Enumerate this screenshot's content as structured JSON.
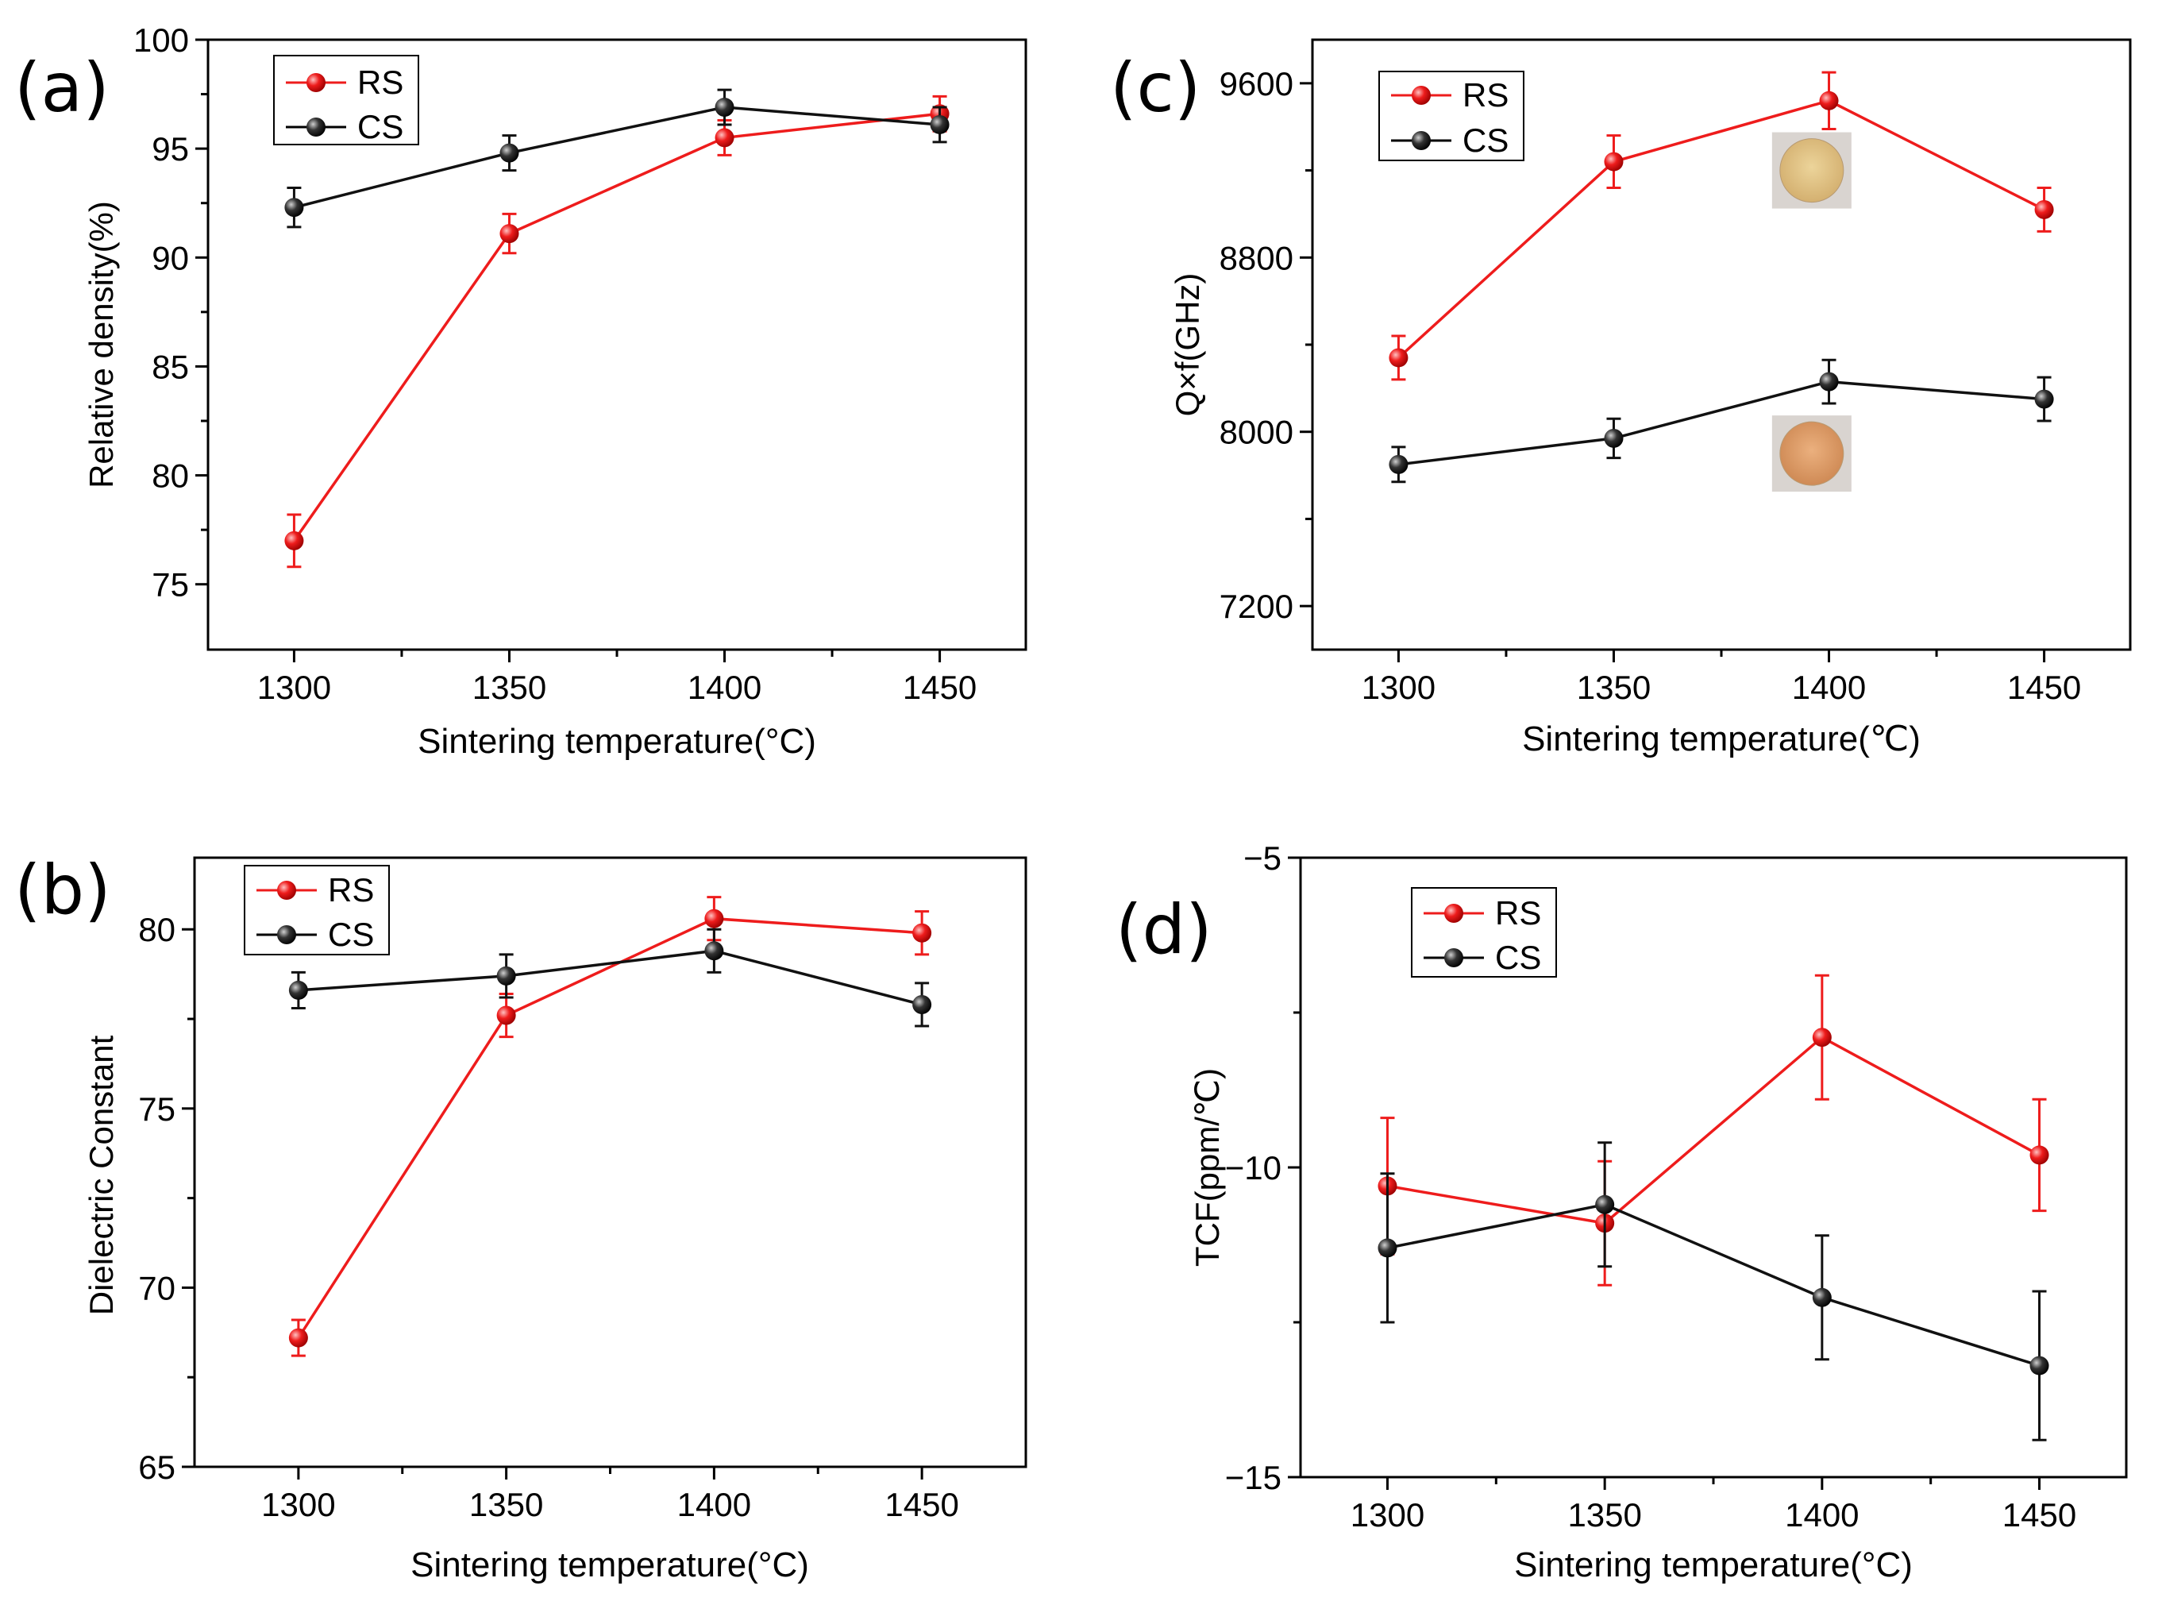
{
  "colors": {
    "RS": "#ee1c1c",
    "CS": "#111111",
    "pellet_top": "#e0c48a",
    "pellet_bottom": "#e0a070"
  },
  "chart_data": [
    {
      "id": "a",
      "panel_label": "(a)",
      "type": "line",
      "xlabel": "Sintering temperature(°C)",
      "ylabel": "Relative density(%)",
      "xlim": [
        1280,
        1470
      ],
      "ylim": [
        72,
        100
      ],
      "xticks": [
        1300,
        1350,
        1400,
        1450
      ],
      "xtick_labels": [
        "1300",
        "1350",
        "1400",
        "1450"
      ],
      "yticks": [
        75,
        80,
        85,
        90,
        95,
        100
      ],
      "ytick_labels": [
        "75",
        "80",
        "85",
        "90",
        "95",
        "100"
      ],
      "legend_position": "top-left",
      "x": [
        1300,
        1350,
        1400,
        1450
      ],
      "series": [
        {
          "name": "RS",
          "color_key": "RS",
          "values": [
            77.0,
            91.1,
            95.5,
            96.6
          ],
          "errors": [
            1.2,
            0.9,
            0.8,
            0.8
          ]
        },
        {
          "name": "CS",
          "color_key": "CS",
          "values": [
            92.3,
            94.8,
            96.9,
            96.1
          ],
          "errors": [
            0.9,
            0.8,
            0.8,
            0.8
          ]
        }
      ]
    },
    {
      "id": "b",
      "panel_label": "(b)",
      "type": "line",
      "xlabel": "Sintering temperature(°C)",
      "ylabel": "Dielectric Constant",
      "xlim": [
        1275,
        1475
      ],
      "ylim": [
        65,
        82
      ],
      "xticks": [
        1300,
        1350,
        1400,
        1450
      ],
      "xtick_labels": [
        "1300",
        "1350",
        "1400",
        "1450"
      ],
      "yticks": [
        65,
        70,
        75,
        80
      ],
      "ytick_labels": [
        "65",
        "70",
        "75",
        "80"
      ],
      "legend_position": "top-left",
      "x": [
        1300,
        1350,
        1400,
        1450
      ],
      "series": [
        {
          "name": "RS",
          "color_key": "RS",
          "values": [
            68.6,
            77.6,
            80.3,
            79.9
          ],
          "errors": [
            0.5,
            0.6,
            0.6,
            0.6
          ]
        },
        {
          "name": "CS",
          "color_key": "CS",
          "values": [
            78.3,
            78.7,
            79.4,
            77.9
          ],
          "errors": [
            0.5,
            0.6,
            0.6,
            0.6
          ]
        }
      ]
    },
    {
      "id": "c",
      "panel_label": "(c)",
      "type": "line",
      "xlabel": "Sintering temperature(℃)",
      "ylabel": "Q×f(GHz)",
      "xlim": [
        1280,
        1470
      ],
      "ylim": [
        7000,
        9800
      ],
      "xticks": [
        1300,
        1350,
        1400,
        1450
      ],
      "xtick_labels": [
        "1300",
        "1350",
        "1400",
        "1450"
      ],
      "yticks": [
        7200,
        8000,
        8800,
        9600
      ],
      "ytick_labels": [
        "7200",
        "8000",
        "8800",
        "9600"
      ],
      "minor_yticks": [
        7600,
        8400,
        9200
      ],
      "legend_position": "top-left",
      "x": [
        1300,
        1350,
        1400,
        1450
      ],
      "series": [
        {
          "name": "RS",
          "color_key": "RS",
          "values": [
            8340,
            9240,
            9520,
            9020
          ],
          "errors": [
            100,
            120,
            130,
            100
          ]
        },
        {
          "name": "CS",
          "color_key": "CS",
          "values": [
            7850,
            7970,
            8230,
            8150
          ],
          "errors": [
            80,
            90,
            100,
            100
          ]
        }
      ],
      "insets": [
        {
          "name": "pellet-rs-photo",
          "x": 1396,
          "y": 9200,
          "color_key": "pellet_top"
        },
        {
          "name": "pellet-cs-photo",
          "x": 1396,
          "y": 7900,
          "color_key": "pellet_bottom"
        }
      ]
    },
    {
      "id": "d",
      "panel_label": "(d)",
      "type": "line",
      "xlabel": "Sintering temperature(°C)",
      "ylabel": "TCF(ppm/℃)",
      "xlim": [
        1280,
        1470
      ],
      "ylim": [
        -15,
        -5
      ],
      "xticks": [
        1300,
        1350,
        1400,
        1450
      ],
      "xtick_labels": [
        "1300",
        "1350",
        "1400",
        "1450"
      ],
      "yticks": [
        -15,
        -10,
        -5
      ],
      "ytick_labels": [
        "−15",
        "−10",
        "−5"
      ],
      "minor_yticks": [
        -12.5,
        -7.5
      ],
      "legend_position": "top-left",
      "x": [
        1300,
        1350,
        1400,
        1450
      ],
      "series": [
        {
          "name": "RS",
          "color_key": "RS",
          "values": [
            -10.3,
            -10.9,
            -7.9,
            -9.8
          ],
          "errors": [
            1.1,
            1.0,
            1.0,
            0.9
          ]
        },
        {
          "name": "CS",
          "color_key": "CS",
          "values": [
            -11.3,
            -10.6,
            -12.1,
            -13.2
          ],
          "errors": [
            1.2,
            1.0,
            1.0,
            1.2
          ]
        }
      ]
    }
  ]
}
